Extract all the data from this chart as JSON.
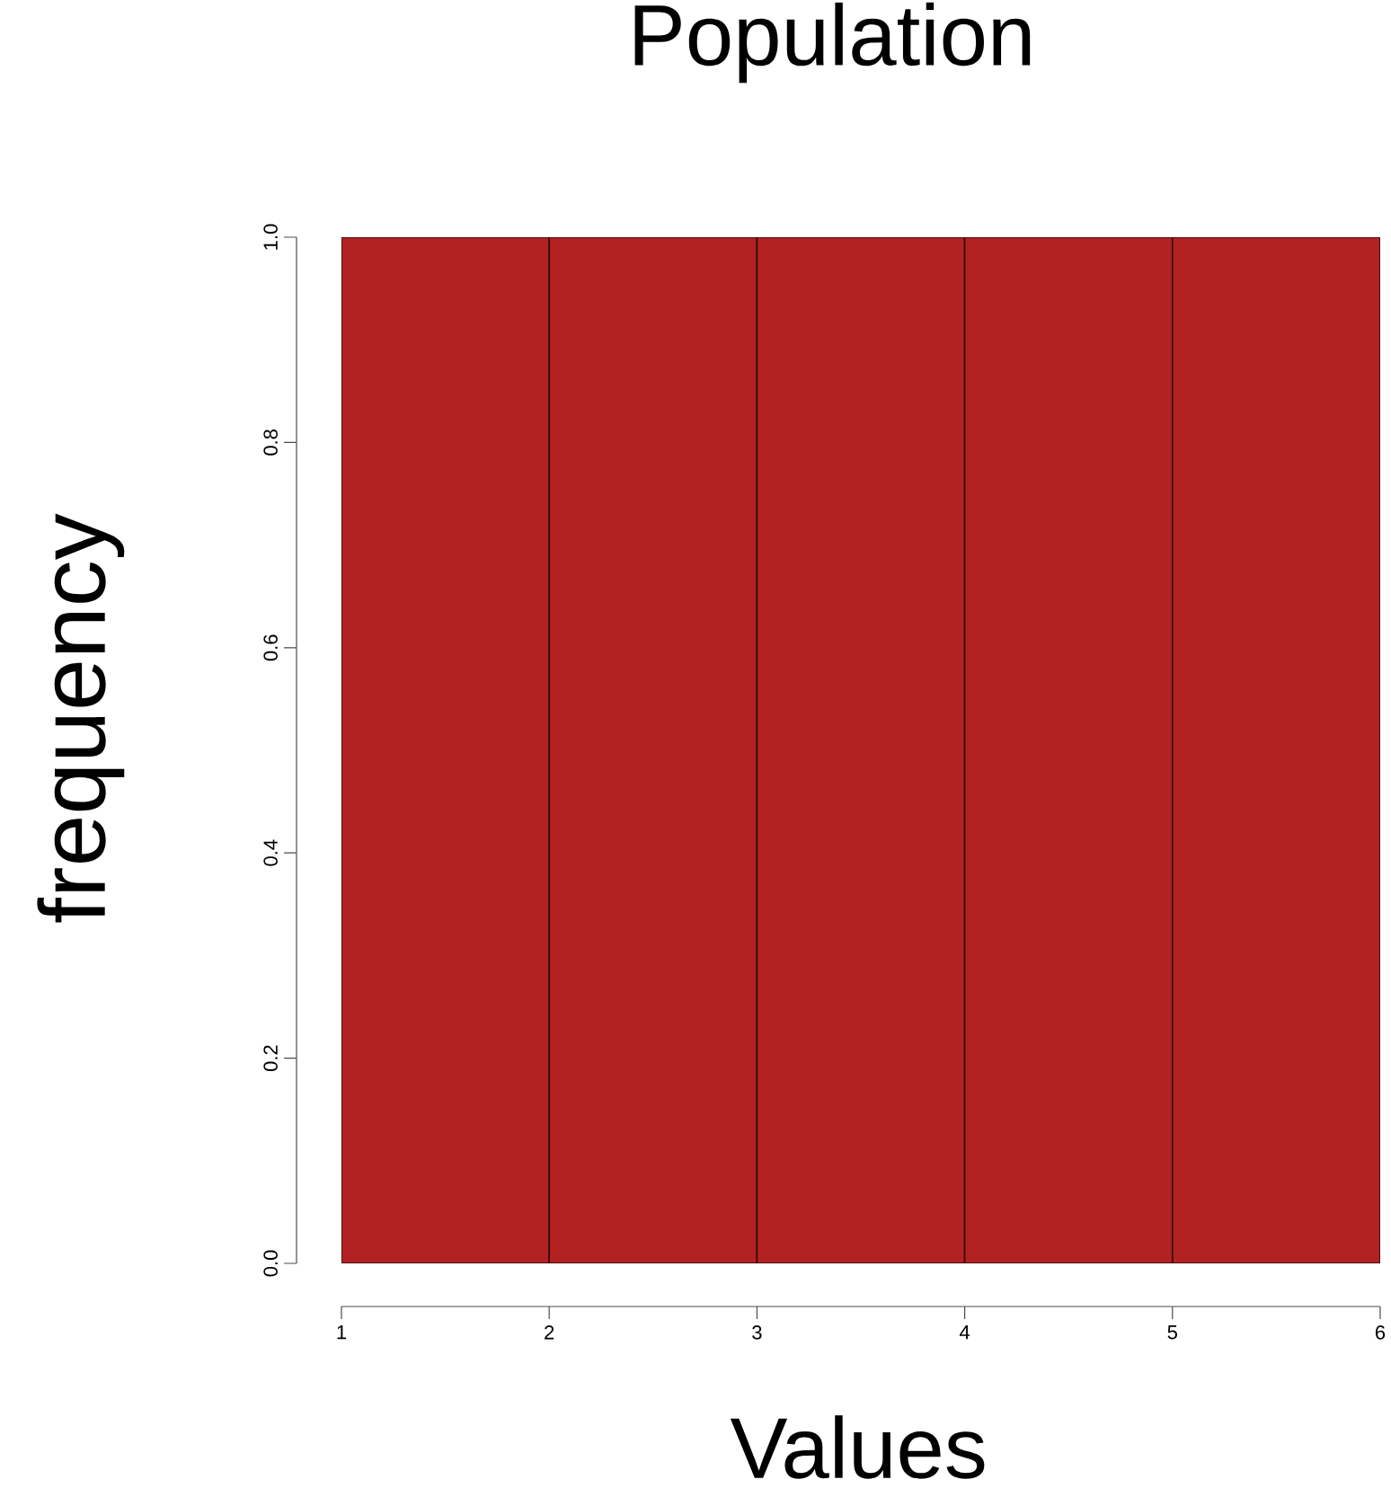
{
  "chart_data": {
    "type": "histogram",
    "title": "Population",
    "xlabel": "Values",
    "ylabel": "frequency",
    "bins": [
      1,
      2,
      3,
      4,
      5,
      6
    ],
    "values": [
      1,
      1,
      1,
      1,
      1
    ],
    "color": "#b22222",
    "xlim": [
      1,
      6
    ],
    "ylim": [
      0,
      1
    ],
    "xticks": [
      1,
      2,
      3,
      4,
      5,
      6
    ],
    "yticks": [
      {
        "value": 0,
        "label": "0.0"
      },
      0.2,
      0.4,
      0.6,
      0.8,
      {
        "value": 1,
        "label": "1.0"
      }
    ]
  }
}
